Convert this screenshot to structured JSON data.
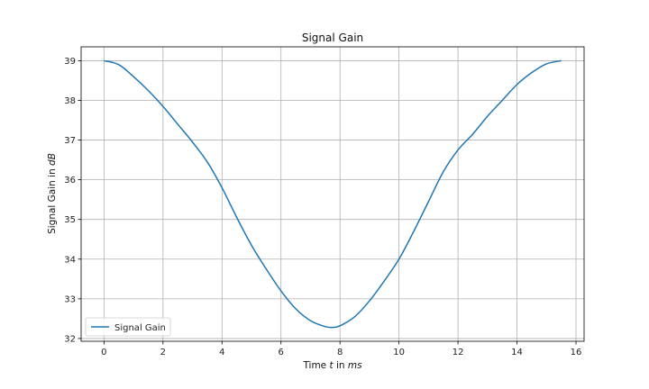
{
  "chart_data": {
    "type": "line",
    "title": "Signal Gain",
    "xlabel_parts": [
      "Time ",
      "t",
      " in ",
      "ms"
    ],
    "ylabel_parts": [
      "Signal Gain in ",
      "dB"
    ],
    "xlim": [
      -0.775,
      16.275
    ],
    "ylim": [
      31.93,
      39.35
    ],
    "xticks": [
      0,
      2,
      4,
      6,
      8,
      10,
      12,
      14,
      16
    ],
    "yticks": [
      32,
      33,
      34,
      35,
      36,
      37,
      38,
      39
    ],
    "grid": true,
    "legend": {
      "placement": "lower-left",
      "entries": [
        "Signal Gain"
      ]
    },
    "series": [
      {
        "name": "Signal Gain",
        "color": "#1f77b4",
        "x": [
          0,
          0.5,
          1,
          1.5,
          2,
          2.5,
          3,
          3.5,
          4,
          4.5,
          5,
          5.5,
          6,
          6.5,
          7,
          7.5,
          7.75,
          8,
          8.5,
          9,
          9.5,
          10,
          10.5,
          11,
          11.5,
          12,
          12.5,
          13,
          13.5,
          14,
          14.5,
          15,
          15.5
        ],
        "y": [
          39.0,
          38.9,
          38.6,
          38.25,
          37.85,
          37.4,
          36.95,
          36.45,
          35.8,
          35.05,
          34.35,
          33.75,
          33.2,
          32.75,
          32.45,
          32.3,
          32.28,
          32.32,
          32.55,
          32.95,
          33.45,
          34.0,
          34.7,
          35.45,
          36.2,
          36.75,
          37.15,
          37.6,
          38.0,
          38.4,
          38.7,
          38.92,
          39.0
        ]
      }
    ]
  }
}
